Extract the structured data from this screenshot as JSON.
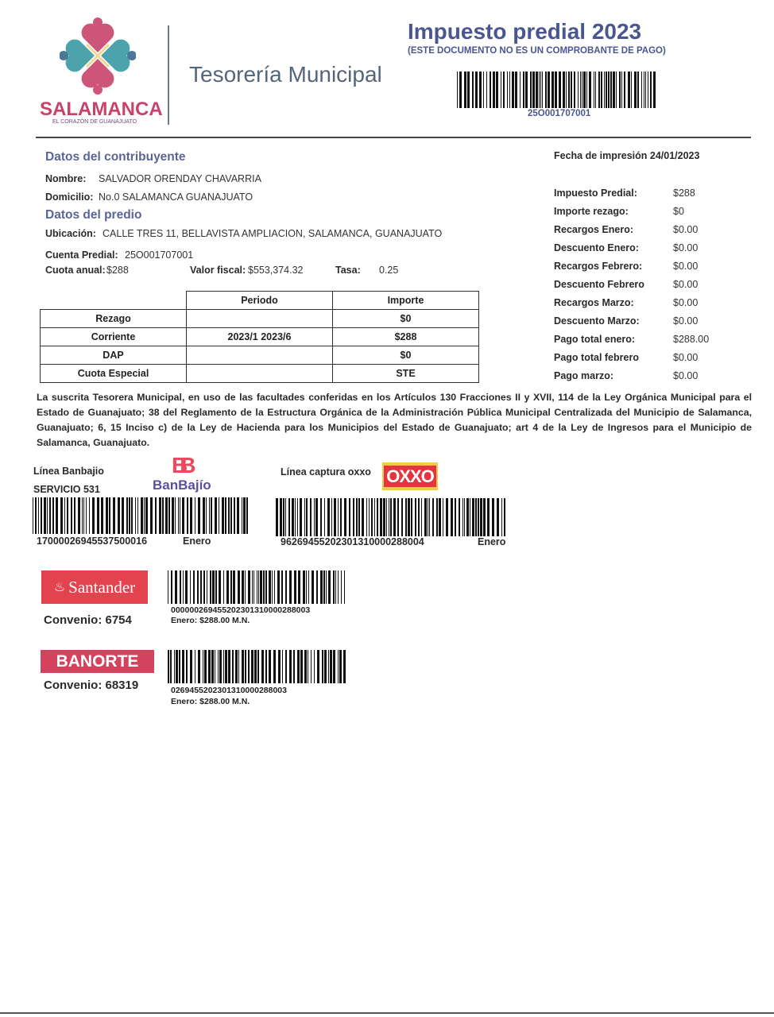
{
  "header": {
    "logo_text": "SALAMANCA",
    "logo_tagline": "EL CORAZÓN DE GUANAJUATO",
    "department": "Tesorería Municipal",
    "title": "Impuesto predial 2023",
    "subtitle": "(ESTE DOCUMENTO NO ES UN COMPROBANTE DE PAGO)",
    "barcode_number": "25O001707001"
  },
  "contribuyente": {
    "heading": "Datos del contribuyente",
    "nombre_label": "Nombre:",
    "nombre": "SALVADOR ORENDAY CHAVARRIA",
    "domicilio_label": "Domicilio:",
    "domicilio": "No.0 SALAMANCA GUANAJUATO"
  },
  "predio": {
    "heading": "Datos del predio",
    "ubicacion_label": "Ubicación:",
    "ubicacion": "CALLE TRES 11, BELLAVISTA AMPLIACION, SALAMANCA, GUANAJUATO",
    "cuenta_label": "Cuenta Predial:",
    "cuenta": "25O001707001",
    "cuota_label": "Cuota anual:",
    "cuota": "$288",
    "valor_label": "Valor fiscal:",
    "valor": "$553,374.32",
    "tasa_label": "Tasa:",
    "tasa": "0.25"
  },
  "table": {
    "headers": [
      "",
      "Periodo",
      "Importe"
    ],
    "rows": [
      [
        "Rezago",
        "",
        "$0"
      ],
      [
        "Corriente",
        "2023/1 2023/6",
        "$288"
      ],
      [
        "DAP",
        "",
        "$0"
      ],
      [
        "Cuota Especial",
        "",
        "STE"
      ]
    ]
  },
  "summary": {
    "fecha": "Fecha de impresión 24/01/2023",
    "items": [
      {
        "label": "Impuesto Predial:",
        "value": "$288"
      },
      {
        "label": "Importe rezago:",
        "value": "$0"
      },
      {
        "label": "Recargos Enero:",
        "value": "$0.00"
      },
      {
        "label": "Descuento Enero:",
        "value": "$0.00"
      },
      {
        "label": "Recargos Febrero:",
        "value": "$0.00"
      },
      {
        "label": "Descuento Febrero",
        "value": "$0.00"
      },
      {
        "label": "Recargos Marzo:",
        "value": "$0.00"
      },
      {
        "label": "Descuento Marzo:",
        "value": "$0.00"
      },
      {
        "label": "Pago total enero:",
        "value": "$288.00"
      },
      {
        "label": "Pago total febrero",
        "value": "$0.00"
      },
      {
        "label": "Pago marzo:",
        "value": "$0.00"
      }
    ]
  },
  "legal_text": "La suscrita Tesorera Municipal, en uso de las facultades conferidas en los Artículos 130 Fracciones II y XVII, 114 de la Ley Orgánica Municipal para el Estado de Guanajuato; 38 del Reglamento de la Estructura Orgánica de la Administración Pública Municipal Centralizada del Municipio de Salamanca, Guanajuato; 6, 15 Inciso c) de la Ley de Hacienda para los Municipios del Estado de Guanajuato; art 4 de la Ley de Ingresos para el Municipio de Salamanca, Guanajuato.",
  "payments": {
    "banbajio": {
      "label": "Línea Banbajio",
      "servicio": "SERVICIO 531",
      "logo": "BanBajío",
      "number": "17000026945537500016",
      "month": "Enero"
    },
    "oxxo": {
      "label": "Línea captura oxxo",
      "logo": "OXXO",
      "number": "96269455202301310000288004",
      "month": "Enero"
    },
    "santander": {
      "logo": "Santander",
      "convenio": "Convenio: 6754",
      "number": "000000269455202301310000288003",
      "amount": "Enero: $288.00 M.N."
    },
    "banorte": {
      "logo": "BANORTE",
      "convenio": "Convenio: 68319",
      "number": "0269455202301310000288003",
      "amount": "Enero: $288.00 M.N."
    }
  },
  "colors": {
    "title": "#4a5690",
    "section": "#5a6595",
    "santander": "#e2434f",
    "banorte": "#d4435e",
    "banbajio_b": "#e84a5f",
    "banbajio_text": "#5a4fa0"
  }
}
